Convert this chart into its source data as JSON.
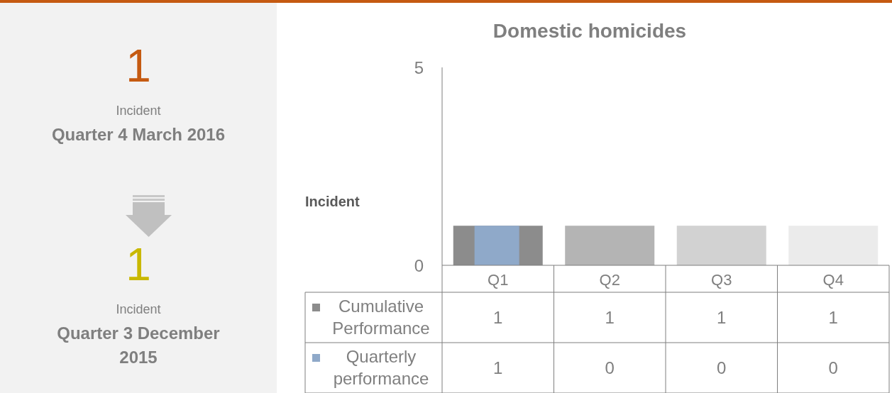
{
  "chart_data": [
    {
      "type": "other",
      "annotations": [
        "1",
        "Incident",
        "Quarter 4 March 2016",
        "1",
        "Incident",
        "Quarter 3 December 2015"
      ]
    },
    {
      "type": "bar",
      "title": "Domestic homicides",
      "ylabel": "Incident",
      "categories": [
        "Q1",
        "Q2",
        "Q3",
        "Q4"
      ],
      "series": [
        {
          "name": "Cumulative Performance",
          "color": "#8c8c8c",
          "colors": [
            "#8c8c8c",
            "#b4b4b4",
            "#d2d2d2",
            "#ebebeb"
          ],
          "values": [
            1,
            1,
            1,
            1
          ]
        },
        {
          "name": "Quarterly performance",
          "color": "#8fa9c9",
          "values": [
            1,
            0,
            0,
            0
          ]
        }
      ],
      "ylim": [
        0,
        5
      ],
      "yticks": [
        0,
        5
      ],
      "data_labels": true,
      "legend": "bottom"
    }
  ]
}
